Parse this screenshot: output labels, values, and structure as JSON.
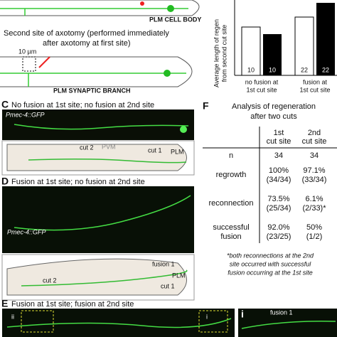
{
  "top_diagram": {
    "cell_body_label": "PLM CELL BODY",
    "second_site_lines": [
      "Second site of axotomy (performed immediately",
      "after axotomy at first site)"
    ],
    "scale": "10 µm",
    "branch_label": "PLM SYNAPTIC BRANCH"
  },
  "bar_panel": {
    "axis_label_lines": [
      "Average length of regen",
      "from second cut site"
    ],
    "n_labels": [
      "10",
      "10",
      "22",
      "22"
    ],
    "group_1_lines": [
      "no fusion at",
      "1st cut site"
    ],
    "group_2_lines": [
      "fusion at",
      "1st cut site"
    ]
  },
  "panel_c": {
    "letter": "C",
    "title": "No fusion at 1st site; no fusion at 2nd site",
    "reporter": "Pmec-4::GFP",
    "labels": [
      "cut 2",
      "PVM",
      "cut 1",
      "PLM"
    ]
  },
  "panel_d": {
    "letter": "D",
    "title": "Fusion at 1st site; no fusion at 2nd site",
    "reporter": "Pmec-4::GFP",
    "labels": [
      "fusion 1",
      "PLM",
      "cut 1",
      "cut 2"
    ]
  },
  "panel_e": {
    "letter": "E",
    "title": "Fusion at 1st site; fusion at 2nd site",
    "inset_labels": [
      "ii",
      "i"
    ],
    "inset_letter": "i",
    "inset_label": "fusion 1"
  },
  "panel_f": {
    "letter": "F",
    "title_lines": [
      "Analysis of regeneration",
      "after two cuts"
    ],
    "columns": [
      [
        "1st",
        "cut site"
      ],
      [
        "2nd",
        "cut site"
      ]
    ],
    "rows": [
      {
        "label": [
          "n"
        ],
        "cells": [
          [
            "34"
          ],
          [
            "34"
          ]
        ]
      },
      {
        "label": [
          "regrowth"
        ],
        "cells": [
          [
            "100%",
            "(34/34)"
          ],
          [
            "97.1%",
            "(33/34)"
          ]
        ]
      },
      {
        "label": [
          "reconnection"
        ],
        "cells": [
          [
            "73.5%",
            "(25/34)"
          ],
          [
            "6.1%",
            "(2/33)*"
          ]
        ]
      },
      {
        "label": [
          "successful",
          "fusion"
        ],
        "cells": [
          [
            "92.0%",
            "(23/25)"
          ],
          [
            "50%",
            "(1/2)"
          ]
        ]
      }
    ],
    "footnote": [
      "*both reconnections at the 2nd",
      "site occurred with successful",
      "fusion occurring at the 1st site"
    ]
  }
}
